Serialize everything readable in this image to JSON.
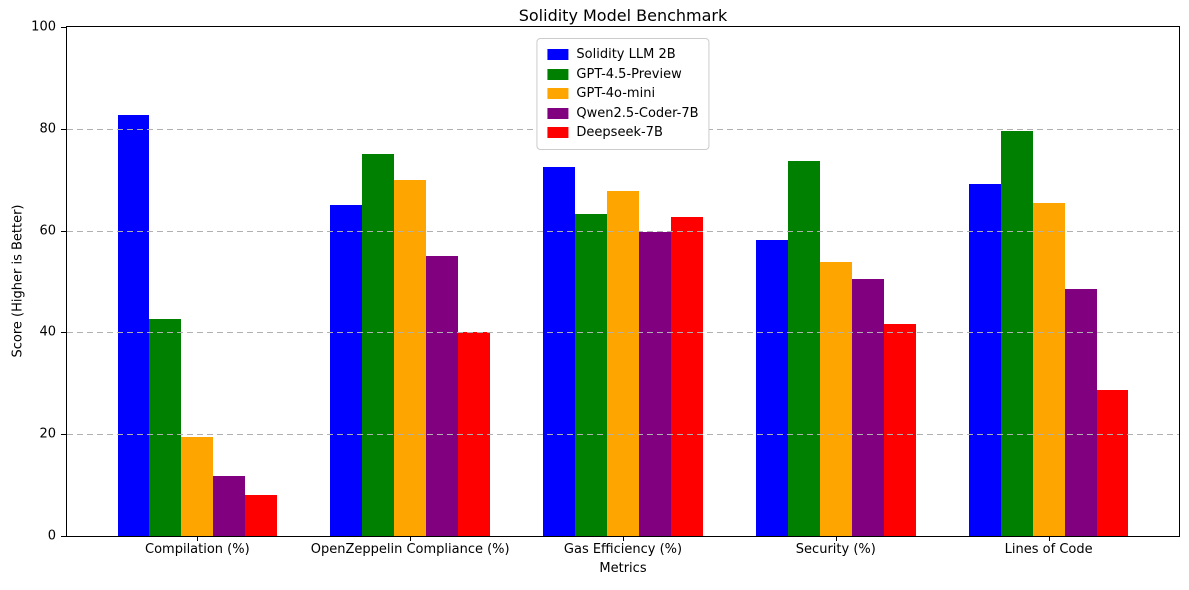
{
  "chart_data": {
    "type": "bar",
    "title": "Solidity Model Benchmark",
    "xlabel": "Metrics",
    "ylabel": "Score (Higher is Better)",
    "categories": [
      "Compilation (%)",
      "OpenZeppelin Compliance (%)",
      "Gas Efficiency (%)",
      "Security (%)",
      "Lines of Code"
    ],
    "series": [
      {
        "name": "Solidity LLM 2B",
        "color": "#0000ff",
        "values": [
          82.8,
          65.0,
          72.4,
          58.2,
          69.2
        ]
      },
      {
        "name": "GPT-4.5-Preview",
        "color": "#008000",
        "values": [
          42.6,
          75.0,
          63.3,
          73.6,
          79.6
        ]
      },
      {
        "name": "GPT-4o-mini",
        "color": "#ffa500",
        "values": [
          19.5,
          70.0,
          67.7,
          53.9,
          65.4
        ]
      },
      {
        "name": "Qwen2.5-Coder-7B",
        "color": "#800080",
        "values": [
          11.8,
          55.0,
          59.8,
          50.5,
          48.5
        ]
      },
      {
        "name": "Deepseek-7B",
        "color": "#ff0000",
        "values": [
          8.0,
          40.0,
          62.7,
          41.6,
          28.6
        ]
      }
    ],
    "ylim": [
      0,
      100
    ],
    "yticks": [
      0,
      20,
      40,
      60,
      80,
      100
    ],
    "grid": "dashed-horizontal",
    "grid_color": "#b0b0b0",
    "legend_position": "upper-center",
    "text_color": "#000000",
    "background_color": "#ffffff"
  }
}
